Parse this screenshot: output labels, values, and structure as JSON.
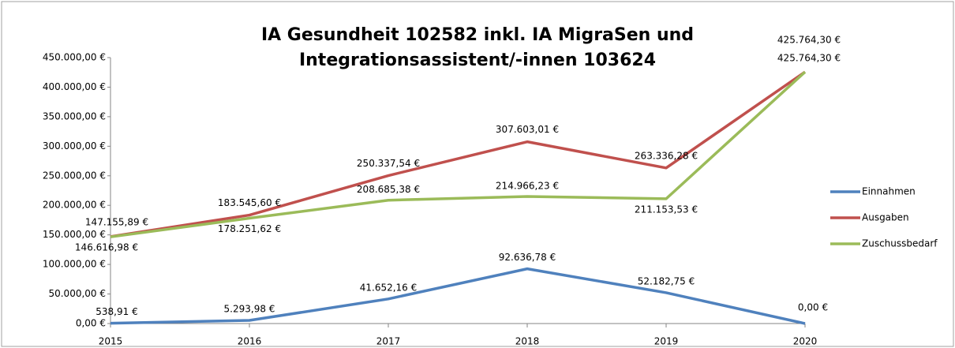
{
  "chart_data": {
    "type": "line",
    "title": [
      "IA Gesundheit 102582 inkl. IA MigraSen und",
      "Integrationsassistent/-innen 103624"
    ],
    "categories": [
      "2015",
      "2016",
      "2017",
      "2018",
      "2019",
      "2020"
    ],
    "series": [
      {
        "name": "Einnahmen",
        "color": "#4f81bd",
        "values": [
          538.91,
          5293.98,
          41652.16,
          92636.78,
          52182.75,
          0
        ],
        "value_labels": [
          "538,91 €",
          "5.293,98 €",
          "41.652,16 €",
          "92.636,78 €",
          "52.182,75 €",
          "0,00 €"
        ]
      },
      {
        "name": "Ausgaben",
        "color": "#c0504d",
        "values": [
          147155.89,
          183545.6,
          250337.54,
          307603.01,
          263336.28,
          425764.3
        ],
        "value_labels": [
          "147.155,89 €",
          "183.545,60 €",
          "250.337,54 €",
          "307.603,01 €",
          "263.336,28 €",
          "425.764,30 €"
        ]
      },
      {
        "name": "Zuschussbedarf",
        "color": "#9bbb59",
        "values": [
          146616.98,
          178251.62,
          208685.38,
          214966.23,
          211153.53,
          425764.3
        ],
        "value_labels": [
          "146.616,98 €",
          "178.251,62 €",
          "208.685,38 €",
          "214.966,23 €",
          "211.153,53 €",
          "425.764,30 €"
        ]
      }
    ],
    "ylim": [
      0,
      450000
    ],
    "yticks": [
      {
        "value": 0,
        "label": "0,00 €"
      },
      {
        "value": 50000,
        "label": "50.000,00 €"
      },
      {
        "value": 100000,
        "label": "100.000,00 €"
      },
      {
        "value": 150000,
        "label": "150.000,00 €"
      },
      {
        "value": 200000,
        "label": "200.000,00 €"
      },
      {
        "value": 250000,
        "label": "250.000,00 €"
      },
      {
        "value": 300000,
        "label": "300.000,00 €"
      },
      {
        "value": 350000,
        "label": "350.000,00 €"
      },
      {
        "value": 400000,
        "label": "400.000,00 €"
      },
      {
        "value": 450000,
        "label": "450.000,00 €"
      }
    ],
    "legend": "right"
  }
}
